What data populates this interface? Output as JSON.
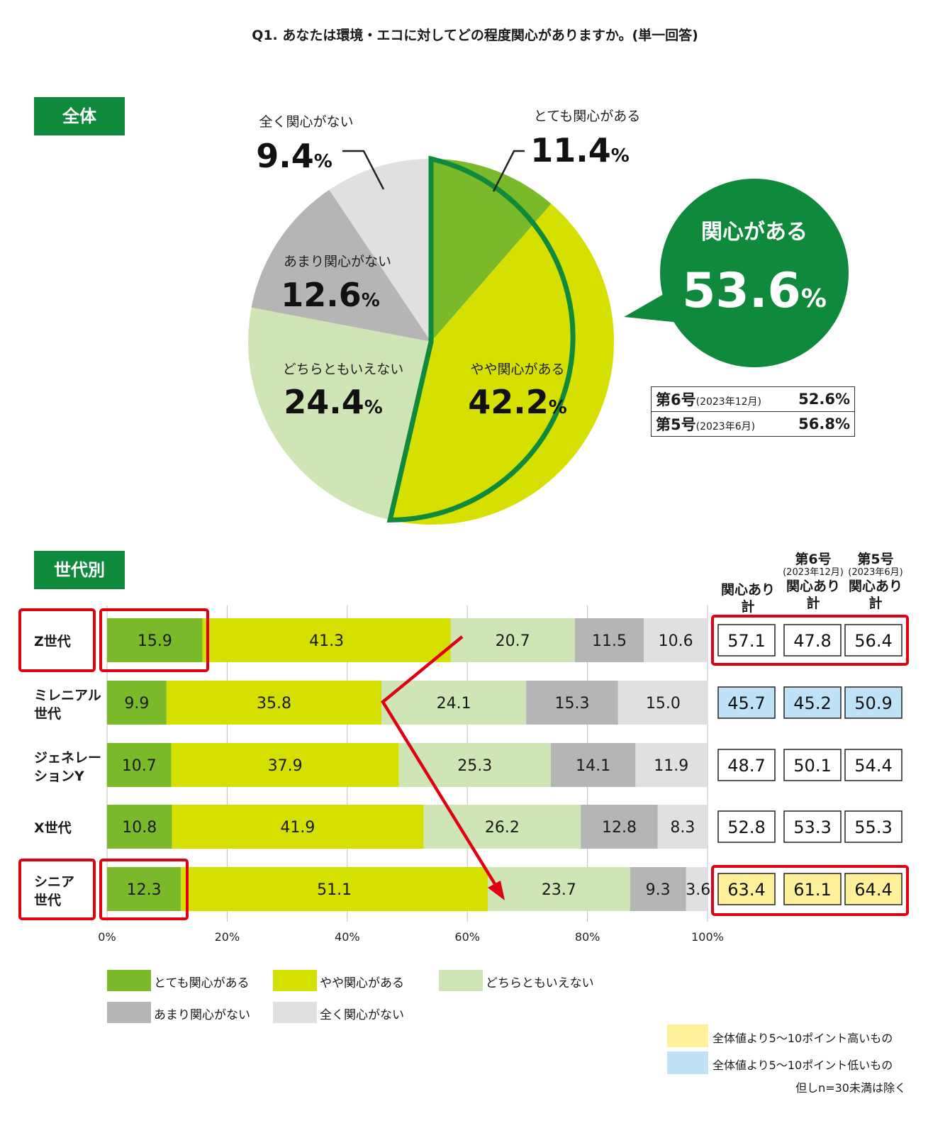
{
  "title": "Q1. あなたは環境・エコに対してどの程度関心がありますか。(単一回答)",
  "overall": {
    "tag": "全体",
    "summary_label": "関心がある",
    "summary_value": "53.6",
    "pct": "%",
    "comparison": [
      {
        "issue": "第6号",
        "period": "(2023年12月)",
        "value": "52.6%"
      },
      {
        "issue": "第5号",
        "period": "(2023年6月)",
        "value": "56.8%"
      }
    ]
  },
  "by_generation": {
    "tag": "世代別",
    "col_headers": [
      {
        "top": "",
        "sub": "",
        "line1": "関心あり",
        "line2": "計"
      },
      {
        "top": "第6号",
        "sub": "(2023年12月)",
        "line1": "関心あり",
        "line2": "計"
      },
      {
        "top": "第5号",
        "sub": "(2023年6月)",
        "line1": "関心あり",
        "line2": "計"
      }
    ],
    "totals": [
      {
        "vals": [
          "57.1",
          "47.8",
          "56.4"
        ],
        "hl": [
          "",
          "",
          ""
        ]
      },
      {
        "vals": [
          "45.7",
          "45.2",
          "50.9"
        ],
        "hl": [
          "low",
          "low",
          "low"
        ]
      },
      {
        "vals": [
          "48.7",
          "50.1",
          "54.4"
        ],
        "hl": [
          "",
          "",
          ""
        ]
      },
      {
        "vals": [
          "52.8",
          "53.3",
          "55.3"
        ],
        "hl": [
          "",
          "",
          ""
        ]
      },
      {
        "vals": [
          "63.4",
          "61.1",
          "64.4"
        ],
        "hl": [
          "high",
          "high",
          "high"
        ]
      }
    ]
  },
  "notes": {
    "high": "全体値より5～10ポイント高いもの",
    "low": "全体値より5～10ポイント低いもの",
    "exclusion": "但しn=30未満は除く"
  },
  "colors": {
    "very": "#7ab929",
    "somewhat": "#d6e000",
    "neutral": "#cfe5b5",
    "not_much": "#b5b5b5",
    "not_at_all": "#e0e0e0",
    "green_dark": "#0f8a3c",
    "red": "#e00010",
    "hl_high": "#fff09a",
    "hl_low": "#bfe2f7"
  },
  "chart_data": [
    {
      "type": "pie",
      "categories": [
        "とても関心がある",
        "やや関心がある",
        "どちらともいえない",
        "あまり関心がない",
        "全く関心がない"
      ],
      "values": [
        11.4,
        42.2,
        24.4,
        12.6,
        9.4
      ],
      "labels": [
        "11.4",
        "42.2",
        "24.4",
        "12.6",
        "9.4"
      ],
      "unit": "%"
    },
    {
      "type": "bar",
      "stacked": true,
      "orientation": "horizontal",
      "categories": [
        "Z世代",
        "ミレニアル世代",
        "ジェネレーションY",
        "X世代",
        "シニア世代"
      ],
      "category_lines": [
        [
          "Z世代"
        ],
        [
          "ミレニアル",
          "世代"
        ],
        [
          "ジェネレー",
          "ションY"
        ],
        [
          "X世代"
        ],
        [
          "シニア",
          "世代"
        ]
      ],
      "series": [
        {
          "name": "とても関心がある",
          "values": [
            15.9,
            9.9,
            10.7,
            10.8,
            12.3
          ]
        },
        {
          "name": "やや関心がある",
          "values": [
            41.3,
            35.8,
            37.9,
            41.9,
            51.1
          ]
        },
        {
          "name": "どちらともいえない",
          "values": [
            20.7,
            24.1,
            25.3,
            26.2,
            23.7
          ]
        },
        {
          "name": "あまり関心がない",
          "values": [
            11.5,
            15.3,
            14.1,
            12.8,
            9.3
          ]
        },
        {
          "name": "全く関心がない",
          "values": [
            10.6,
            15.0,
            11.9,
            8.3,
            3.6
          ]
        }
      ],
      "xlim": [
        0,
        100
      ],
      "xticks": [
        "0%",
        "20%",
        "40%",
        "60%",
        "80%",
        "100%"
      ],
      "grid": true,
      "legend": "bottom"
    }
  ]
}
